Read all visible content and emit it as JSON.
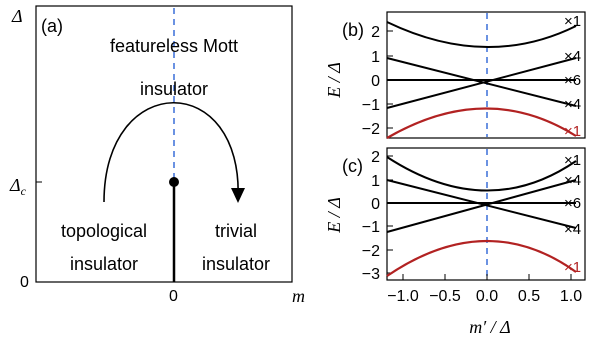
{
  "panel_a": {
    "label": "(a)",
    "y_axis_label": "Δ",
    "y_tick_delta_c": "Δ",
    "y_tick_delta_c_sub": "c",
    "y_tick_zero": "0",
    "x_tick_zero": "0",
    "x_axis_label": "m",
    "mott_line1": "featureless Mott",
    "mott_line2": "insulator",
    "topo_line1": "topological",
    "topo_line2": "insulator",
    "trivial_line1": "trivial",
    "trivial_line2": "insulator"
  },
  "panel_b": {
    "label": "(b)",
    "y_label": "E / Δ",
    "y_ticks": [
      "2",
      "1",
      "0",
      "−1",
      "−2"
    ],
    "multiplicities": [
      "×1",
      "×4",
      "×6",
      "×4",
      "×1"
    ]
  },
  "panel_c": {
    "label": "(c)",
    "y_label": "E / Δ",
    "y_ticks": [
      "2",
      "1",
      "0",
      "−1",
      "−2",
      "−3"
    ],
    "multiplicities": [
      "×1",
      "×4",
      "×6",
      "×4",
      "×1"
    ]
  },
  "x_axis_bottom": {
    "ticks": [
      "−1.0",
      "−0.5",
      "0.0",
      "0.5",
      "1.0"
    ],
    "label": "m′ / Δ"
  },
  "colors": {
    "line": "#000000",
    "red_band": "#b22222",
    "dashed": "#3a6fd8"
  }
}
